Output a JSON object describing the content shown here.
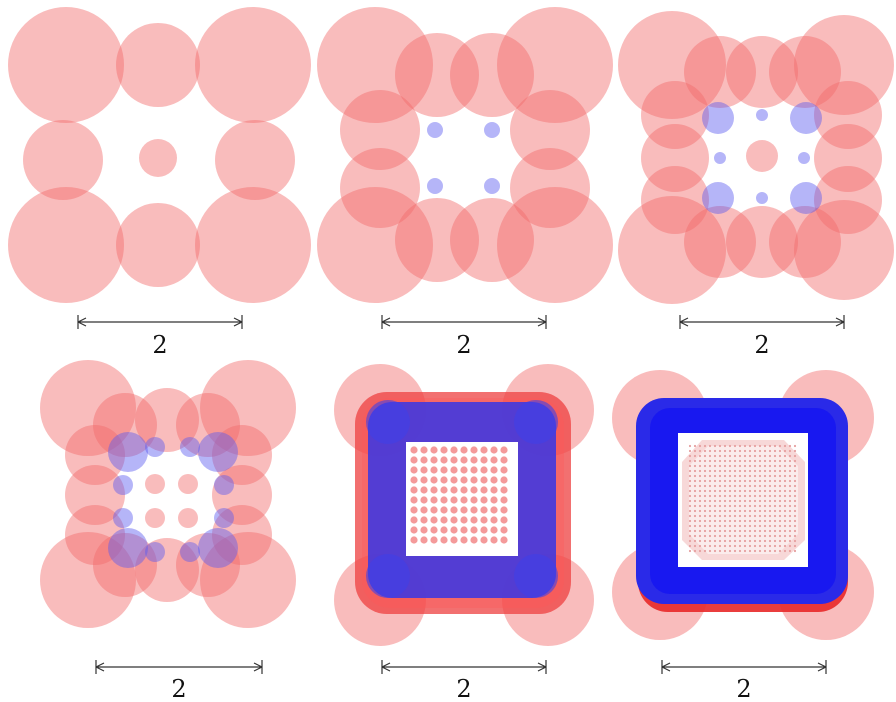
{
  "colors": {
    "red": "#f26a6a",
    "blue": "#5a5af0",
    "scale_bar": "#333333"
  },
  "panels": [
    {
      "id": "panel-1",
      "blue_circles": false,
      "scale_label": "2"
    },
    {
      "id": "panel-2",
      "blue_circles": true,
      "scale_label": "2"
    },
    {
      "id": "panel-3",
      "blue_circles": true,
      "scale_label": "2"
    },
    {
      "id": "panel-4",
      "blue_circles": true,
      "scale_label": "2"
    },
    {
      "id": "panel-5",
      "blue_circles": true,
      "scale_label": "2"
    },
    {
      "id": "panel-6",
      "blue_circles": true,
      "scale_label": "2"
    }
  ]
}
